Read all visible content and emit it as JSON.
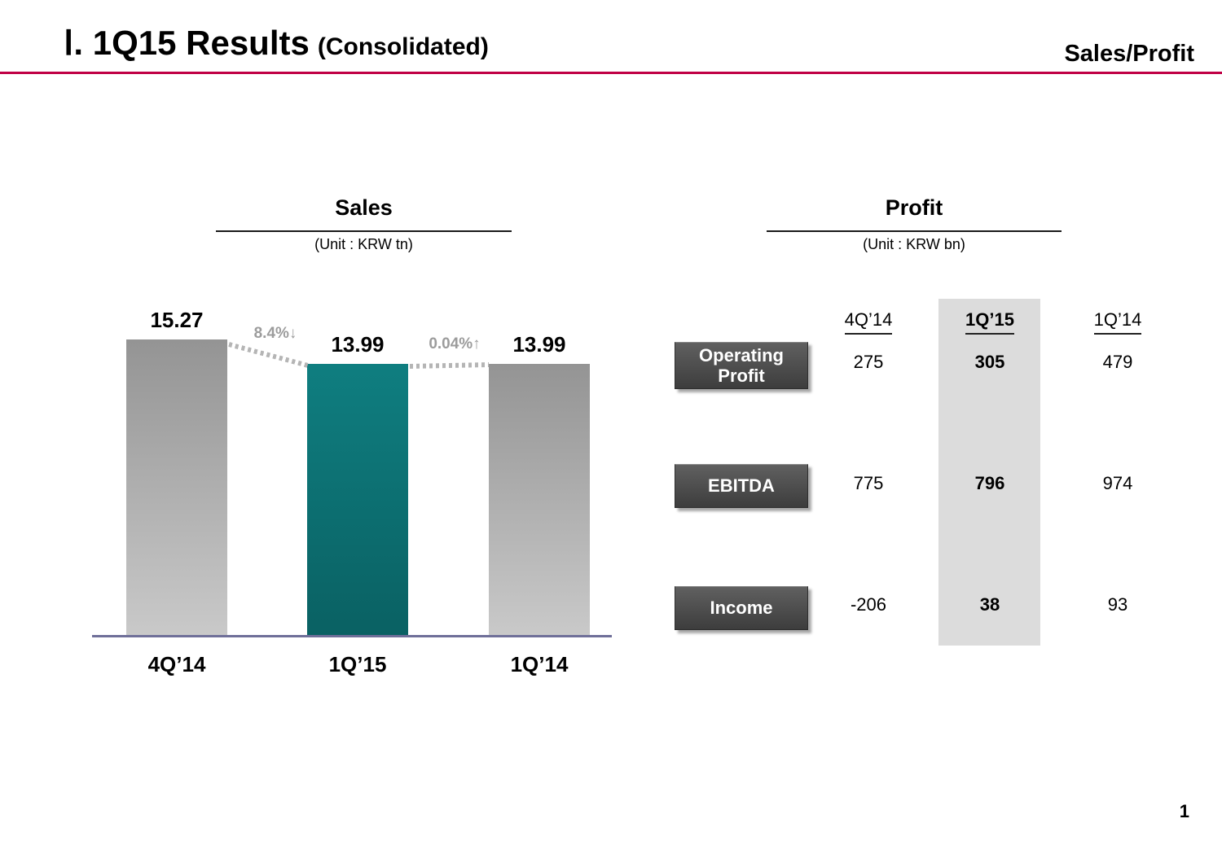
{
  "header": {
    "title_main": "Ⅰ. 1Q15 Results",
    "title_sub": "(Consolidated)",
    "section_label": "Sales/Profit"
  },
  "footer": {
    "page_number": "1"
  },
  "colors": {
    "accent_line": "#c00045",
    "bar_highlight_teal": "#0d7476",
    "bar_gray": "#a9a9a9",
    "highlight_column_bg": "#dcdcdc",
    "row_button_bg": "#4a4a4a",
    "change_label_gray": "#9c9c9c"
  },
  "chart_data": [
    {
      "type": "bar",
      "title": "Sales",
      "unit_label": "(Unit : KRW tn)",
      "categories": [
        "4Q’14",
        "1Q’15",
        "1Q’14"
      ],
      "values": [
        15.27,
        13.99,
        13.99
      ],
      "value_labels": [
        "15.27",
        "13.99",
        "13.99"
      ],
      "change_labels": [
        "8.4%↓",
        "0.04%↑"
      ],
      "highlight_index": 1,
      "ylim": [
        0,
        15.27
      ],
      "grid": false,
      "legend": "none"
    },
    {
      "type": "table",
      "title": "Profit",
      "unit_label": "(Unit : KRW bn)",
      "columns": [
        "4Q’14",
        "1Q’15",
        "1Q’14"
      ],
      "highlight_column": "1Q’15",
      "rows": [
        {
          "label": "Operating Profit",
          "values": [
            "275",
            "305",
            "479"
          ]
        },
        {
          "label": "EBITDA",
          "values": [
            "775",
            "796",
            "974"
          ]
        },
        {
          "label": "Income",
          "values": [
            "-206",
            "38",
            "93"
          ]
        }
      ]
    }
  ]
}
